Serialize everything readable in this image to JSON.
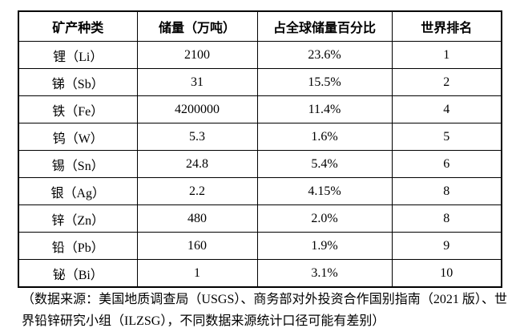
{
  "table": {
    "column_keys": [
      "mineral",
      "reserves",
      "global-share",
      "world-rank"
    ],
    "columns": [
      "矿产种类",
      "储量（万吨）",
      "占全球储量百分比",
      "世界排名"
    ],
    "rows": [
      [
        "锂（Li）",
        "2100",
        "23.6%",
        "1"
      ],
      [
        "锑（Sb）",
        "31",
        "15.5%",
        "2"
      ],
      [
        "铁（Fe）",
        "4200000",
        "11.4%",
        "4"
      ],
      [
        "钨（W）",
        "5.3",
        "1.6%",
        "5"
      ],
      [
        "锡（Sn）",
        "24.8",
        "5.4%",
        "6"
      ],
      [
        "银（Ag）",
        "2.2",
        "4.15%",
        "8"
      ],
      [
        "锌（Zn）",
        "480",
        "2.0%",
        "8"
      ],
      [
        "铅（Pb）",
        "160",
        "1.9%",
        "9"
      ],
      [
        "铋（Bi）",
        "1",
        "3.1%",
        "10"
      ]
    ]
  },
  "footnote": "（数据来源：美国地质调查局（USGS）、商务部对外投资合作国别指南（2021 版）、世界铅锌研究小组（ILZSG），不同数据来源统计口径可能有差别）",
  "colors": {
    "text": "#000000",
    "border": "#000000",
    "background": "#ffffff"
  },
  "chart_data": {
    "type": "table",
    "title": "",
    "columns": [
      "矿产种类",
      "储量（万吨）",
      "占全球储量百分比",
      "世界排名"
    ],
    "rows": [
      {
        "mineral": "锂（Li）",
        "reserves_wan_ton": 2100,
        "global_share_pct": 23.6,
        "world_rank": 1
      },
      {
        "mineral": "锑（Sb）",
        "reserves_wan_ton": 31,
        "global_share_pct": 15.5,
        "world_rank": 2
      },
      {
        "mineral": "铁（Fe）",
        "reserves_wan_ton": 4200000,
        "global_share_pct": 11.4,
        "world_rank": 4
      },
      {
        "mineral": "钨（W）",
        "reserves_wan_ton": 5.3,
        "global_share_pct": 1.6,
        "world_rank": 5
      },
      {
        "mineral": "锡（Sn）",
        "reserves_wan_ton": 24.8,
        "global_share_pct": 5.4,
        "world_rank": 6
      },
      {
        "mineral": "银（Ag）",
        "reserves_wan_ton": 2.2,
        "global_share_pct": 4.15,
        "world_rank": 8
      },
      {
        "mineral": "锌（Zn）",
        "reserves_wan_ton": 480,
        "global_share_pct": 2.0,
        "world_rank": 8
      },
      {
        "mineral": "铅（Pb）",
        "reserves_wan_ton": 160,
        "global_share_pct": 1.9,
        "world_rank": 9
      },
      {
        "mineral": "铋（Bi）",
        "reserves_wan_ton": 1,
        "global_share_pct": 3.1,
        "world_rank": 10
      }
    ]
  }
}
